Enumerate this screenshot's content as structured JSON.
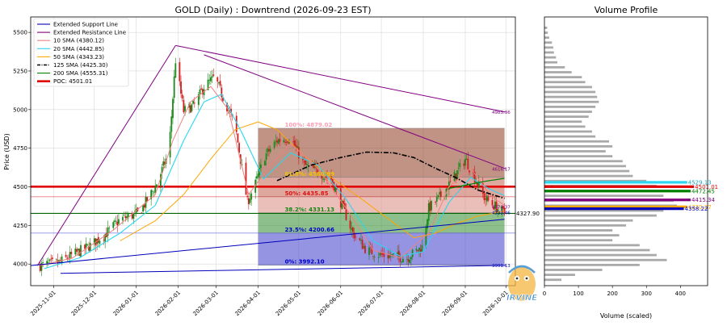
{
  "chart_data": [
    {
      "type": "candlestick",
      "title": "GOLD (Daily) : Downtrend (2026-09-23 EST)",
      "ylabel": "Price (USD)",
      "xlabel": "",
      "ylim": [
        3860,
        5600
      ],
      "x_range": [
        "2025-10-15",
        "2026-10-08"
      ],
      "x_tick_labels": [
        "2025-11-01",
        "2025-12-01",
        "2026-01-01",
        "2026-02-01",
        "2026-03-01",
        "2026-04-01",
        "2026-05-01",
        "2026-06-01",
        "2026-07-01",
        "2026-08-01",
        "2026-09-01",
        "2026-10-01"
      ],
      "y_ticks": [
        4000,
        4250,
        4500,
        4750,
        5000,
        5250,
        5500
      ],
      "grid": true,
      "legend_position": "top-left",
      "legend": [
        {
          "label": "Extended Support Line",
          "color": "#0000bb",
          "style": "line"
        },
        {
          "label": "Extended Resistance Line",
          "color": "#800080",
          "style": "line"
        },
        {
          "label": "10 SMA (4380.12)",
          "color": "#f08080",
          "style": "line"
        },
        {
          "label": "20 SMA (4442.85)",
          "color": "#2ad6f0",
          "style": "line"
        },
        {
          "label": "50 SMA (4343.23)",
          "color": "#ffa500",
          "style": "line"
        },
        {
          "label": "125 SMA (4425.30)",
          "color": "#000000",
          "style": "dashdot"
        },
        {
          "label": "200 SMA (4555.31)",
          "color": "#008000",
          "style": "line"
        },
        {
          "label": "POC: 4501.01",
          "color": "#e00000",
          "style": "thick"
        }
      ],
      "support_line": {
        "points": [
          [
            "2025-10-15",
            3990
          ],
          [
            "2026-09-30",
            4290
          ]
        ],
        "extended": [
          [
            "2025-11-06",
            3940
          ],
          [
            "2026-10-01",
            3991.13
          ]
        ],
        "end_label": "3991.13"
      },
      "resistance_line": {
        "points": [
          [
            "2025-10-20",
            3990
          ],
          [
            "2026-01-30",
            5415
          ]
        ],
        "extended": [
          [
            "2026-01-30",
            5415
          ],
          [
            "2026-10-01",
            4983.36
          ]
        ],
        "end_label": "4983.36"
      },
      "resistance_line_2": {
        "extended": [
          [
            "2026-02-20",
            5355
          ],
          [
            "2026-10-01",
            4616.17
          ]
        ],
        "end_label": "4616.17"
      },
      "right_labels": [
        {
          "text": "4983.36",
          "value": 4983.36,
          "color": "#800080"
        },
        {
          "text": "4616.17",
          "value": 4616.17,
          "color": "#800080"
        },
        {
          "text": "4370.37",
          "value": 4370.37,
          "color": "#800080"
        },
        {
          "text": "4333.46",
          "value": 4333.46,
          "color": "#0000bb"
        },
        {
          "text": "3991.13",
          "value": 3991.13,
          "color": "#0000bb"
        }
      ],
      "last_price_label": {
        "text": "4327.90",
        "value": 4327.9
      },
      "fib_box": {
        "x_start": "2026-04-01",
        "x_end": "2026-09-30"
      },
      "fib_levels": [
        {
          "label": "100%: 4879.02",
          "value": 4879.02,
          "text_color": "#ff9eb5"
        },
        {
          "label": "61.8%: 4560.99",
          "value": 4560.99,
          "text_color": "#f2c200"
        },
        {
          "label": "50%: 4435.85",
          "value": 4435.85,
          "text_color": "#dd1111"
        },
        {
          "label": "38.2%: 4331.13",
          "value": 4331.13,
          "text_color": "#118811"
        },
        {
          "label": "23.5%: 4200.66",
          "value": 4200.66,
          "text_color": "#0000cc"
        },
        {
          "label": "0%: 3992.10",
          "value": 3992.1,
          "text_color": "#0000cc"
        }
      ],
      "fib_zone_colors": [
        "#8c3a20",
        "#c46050",
        "#d98b80",
        "#2e8b2e",
        "#3d3dcc",
        "#9b59b6"
      ],
      "horizontal_lines": [
        {
          "value": 4501.01,
          "color": "#e00000",
          "kind": "poc"
        },
        {
          "value": 4327.9,
          "color": "#006400",
          "kind": "last"
        },
        {
          "value": 4200.66,
          "color": "#6060dd",
          "kind": "fib"
        },
        {
          "value": 4435.85,
          "color": "#dd4444",
          "kind": "fib"
        }
      ],
      "candles_anchor": {
        "start": "2025-10-22",
        "end": "2026-09-30"
      },
      "close_path": [
        [
          "2025-10-22",
          3990
        ],
        [
          "2025-11-05",
          4010
        ],
        [
          "2025-11-15",
          4060
        ],
        [
          "2025-11-28",
          4120
        ],
        [
          "2025-12-10",
          4200
        ],
        [
          "2025-12-20",
          4290
        ],
        [
          "2026-01-03",
          4330
        ],
        [
          "2026-01-15",
          4500
        ],
        [
          "2026-01-25",
          4720
        ],
        [
          "2026-01-30",
          5320
        ],
        [
          "2026-02-05",
          4990
        ],
        [
          "2026-02-13",
          5030
        ],
        [
          "2026-02-20",
          5150
        ],
        [
          "2026-02-28",
          5210
        ],
        [
          "2026-03-06",
          5080
        ],
        [
          "2026-03-15",
          4900
        ],
        [
          "2026-03-20",
          4620
        ],
        [
          "2026-03-24",
          4400
        ],
        [
          "2026-03-30",
          4520
        ],
        [
          "2026-04-06",
          4700
        ],
        [
          "2026-04-15",
          4800
        ],
        [
          "2026-04-25",
          4820
        ],
        [
          "2026-05-05",
          4640
        ],
        [
          "2026-05-15",
          4600
        ],
        [
          "2026-05-25",
          4550
        ],
        [
          "2026-06-01",
          4400
        ],
        [
          "2026-06-10",
          4200
        ],
        [
          "2026-06-20",
          4090
        ],
        [
          "2026-06-30",
          4060
        ],
        [
          "2026-07-10",
          4050
        ],
        [
          "2026-07-20",
          4040
        ],
        [
          "2026-07-31",
          4110
        ],
        [
          "2026-08-05",
          4360
        ],
        [
          "2026-08-15",
          4450
        ],
        [
          "2026-08-25",
          4580
        ],
        [
          "2026-09-01",
          4680
        ],
        [
          "2026-09-08",
          4560
        ],
        [
          "2026-09-15",
          4430
        ],
        [
          "2026-09-22",
          4380
        ],
        [
          "2026-09-30",
          4328
        ]
      ],
      "sma10_path": [
        [
          "2025-10-22",
          3990
        ],
        [
          "2025-11-15",
          4040
        ],
        [
          "2025-12-15",
          4220
        ],
        [
          "2026-01-15",
          4450
        ],
        [
          "2026-01-28",
          4800
        ],
        [
          "2026-02-10",
          5050
        ],
        [
          "2026-02-25",
          5150
        ],
        [
          "2026-03-10",
          5000
        ],
        [
          "2026-03-25",
          4450
        ],
        [
          "2026-04-10",
          4640
        ],
        [
          "2026-04-25",
          4780
        ],
        [
          "2026-05-15",
          4620
        ],
        [
          "2026-06-05",
          4360
        ],
        [
          "2026-06-25",
          4090
        ],
        [
          "2026-07-15",
          4040
        ],
        [
          "2026-08-05",
          4200
        ],
        [
          "2026-08-20",
          4500
        ],
        [
          "2026-09-05",
          4620
        ],
        [
          "2026-09-20",
          4440
        ],
        [
          "2026-09-30",
          4380
        ]
      ],
      "sma20_path": [
        [
          "2025-10-25",
          3970
        ],
        [
          "2025-11-20",
          4040
        ],
        [
          "2025-12-20",
          4200
        ],
        [
          "2026-01-15",
          4380
        ],
        [
          "2026-02-05",
          4800
        ],
        [
          "2026-02-20",
          5050
        ],
        [
          "2026-03-05",
          5100
        ],
        [
          "2026-03-20",
          4850
        ],
        [
          "2026-04-05",
          4550
        ],
        [
          "2026-04-25",
          4720
        ],
        [
          "2026-05-15",
          4640
        ],
        [
          "2026-06-05",
          4420
        ],
        [
          "2026-06-25",
          4150
        ],
        [
          "2026-07-15",
          4050
        ],
        [
          "2026-08-01",
          4080
        ],
        [
          "2026-08-20",
          4400
        ],
        [
          "2026-09-05",
          4560
        ],
        [
          "2026-09-20",
          4480
        ],
        [
          "2026-09-30",
          4443
        ]
      ],
      "sma50_path": [
        [
          "2025-12-20",
          4150
        ],
        [
          "2026-01-15",
          4280
        ],
        [
          "2026-02-05",
          4450
        ],
        [
          "2026-02-25",
          4680
        ],
        [
          "2026-03-15",
          4870
        ],
        [
          "2026-04-01",
          4920
        ],
        [
          "2026-04-15",
          4870
        ],
        [
          "2026-05-05",
          4700
        ],
        [
          "2026-05-25",
          4560
        ],
        [
          "2026-06-15",
          4430
        ],
        [
          "2026-07-05",
          4300
        ],
        [
          "2026-07-25",
          4170
        ],
        [
          "2026-08-10",
          4200
        ],
        [
          "2026-08-25",
          4260
        ],
        [
          "2026-09-10",
          4310
        ],
        [
          "2026-09-30",
          4343
        ]
      ],
      "sma125_path": [
        [
          "2026-04-15",
          4540
        ],
        [
          "2026-05-10",
          4640
        ],
        [
          "2026-06-01",
          4690
        ],
        [
          "2026-06-20",
          4725
        ],
        [
          "2026-07-10",
          4720
        ],
        [
          "2026-07-25",
          4690
        ],
        [
          "2026-08-10",
          4620
        ],
        [
          "2026-08-25",
          4560
        ],
        [
          "2026-09-10",
          4480
        ],
        [
          "2026-09-30",
          4425
        ]
      ],
      "sma200_path": [
        [
          "2026-08-20",
          4490
        ],
        [
          "2026-09-01",
          4510
        ],
        [
          "2026-09-15",
          4535
        ],
        [
          "2026-09-30",
          4555
        ]
      ]
    },
    {
      "type": "bar",
      "orientation": "horizontal",
      "title": "Volume Profile",
      "xlabel": "Volume (scaled)",
      "ylim": [
        3860,
        5600
      ],
      "xlim": [
        0,
        480
      ],
      "x_ticks": [
        0,
        100,
        200,
        300,
        400
      ],
      "bars": [
        [
          5530,
          8
        ],
        [
          5498,
          10
        ],
        [
          5466,
          14
        ],
        [
          5434,
          22
        ],
        [
          5402,
          26
        ],
        [
          5370,
          28
        ],
        [
          5338,
          34
        ],
        [
          5306,
          38
        ],
        [
          5274,
          60
        ],
        [
          5242,
          80
        ],
        [
          5210,
          110
        ],
        [
          5178,
          120
        ],
        [
          5146,
          140
        ],
        [
          5114,
          150
        ],
        [
          5082,
          155
        ],
        [
          5050,
          160
        ],
        [
          5018,
          150
        ],
        [
          4986,
          140
        ],
        [
          4954,
          130
        ],
        [
          4922,
          110
        ],
        [
          4890,
          120
        ],
        [
          4858,
          140
        ],
        [
          4826,
          150
        ],
        [
          4794,
          190
        ],
        [
          4762,
          200
        ],
        [
          4730,
          180
        ],
        [
          4698,
          200
        ],
        [
          4666,
          230
        ],
        [
          4634,
          240
        ],
        [
          4602,
          250
        ],
        [
          4570,
          260
        ],
        [
          4538,
          300
        ],
        [
          4506,
          330
        ],
        [
          4474,
          370
        ],
        [
          4442,
          350
        ],
        [
          4410,
          380
        ],
        [
          4378,
          390
        ],
        [
          4346,
          350
        ],
        [
          4314,
          330
        ],
        [
          4282,
          260
        ],
        [
          4250,
          240
        ],
        [
          4218,
          200
        ],
        [
          4186,
          220
        ],
        [
          4154,
          200
        ],
        [
          4122,
          280
        ],
        [
          4090,
          310
        ],
        [
          4058,
          330
        ],
        [
          4026,
          360
        ],
        [
          3994,
          280
        ],
        [
          3962,
          170
        ],
        [
          3930,
          90
        ],
        [
          3898,
          50
        ]
      ],
      "bar_color": "#a9a9a9",
      "markers": [
        {
          "text": "4529.13",
          "value": 4529.13,
          "length": 420,
          "color": "#2ad6f0"
        },
        {
          "text": "4501.01",
          "value": 4501.01,
          "length": 440,
          "color": "#e00000"
        },
        {
          "text": "4472.45",
          "value": 4472.45,
          "length": 430,
          "color": "#008000"
        },
        {
          "text": "4415.34",
          "value": 4415.34,
          "length": 430,
          "color": "#800080"
        },
        {
          "text": "4370.37",
          "value": 4370.37,
          "length": 420,
          "color": "#ffa500"
        },
        {
          "text": "4358.22",
          "value": 4358.22,
          "length": 410,
          "color": "#0000bb"
        }
      ]
    }
  ],
  "watermark": {
    "text": "IRVINE"
  }
}
